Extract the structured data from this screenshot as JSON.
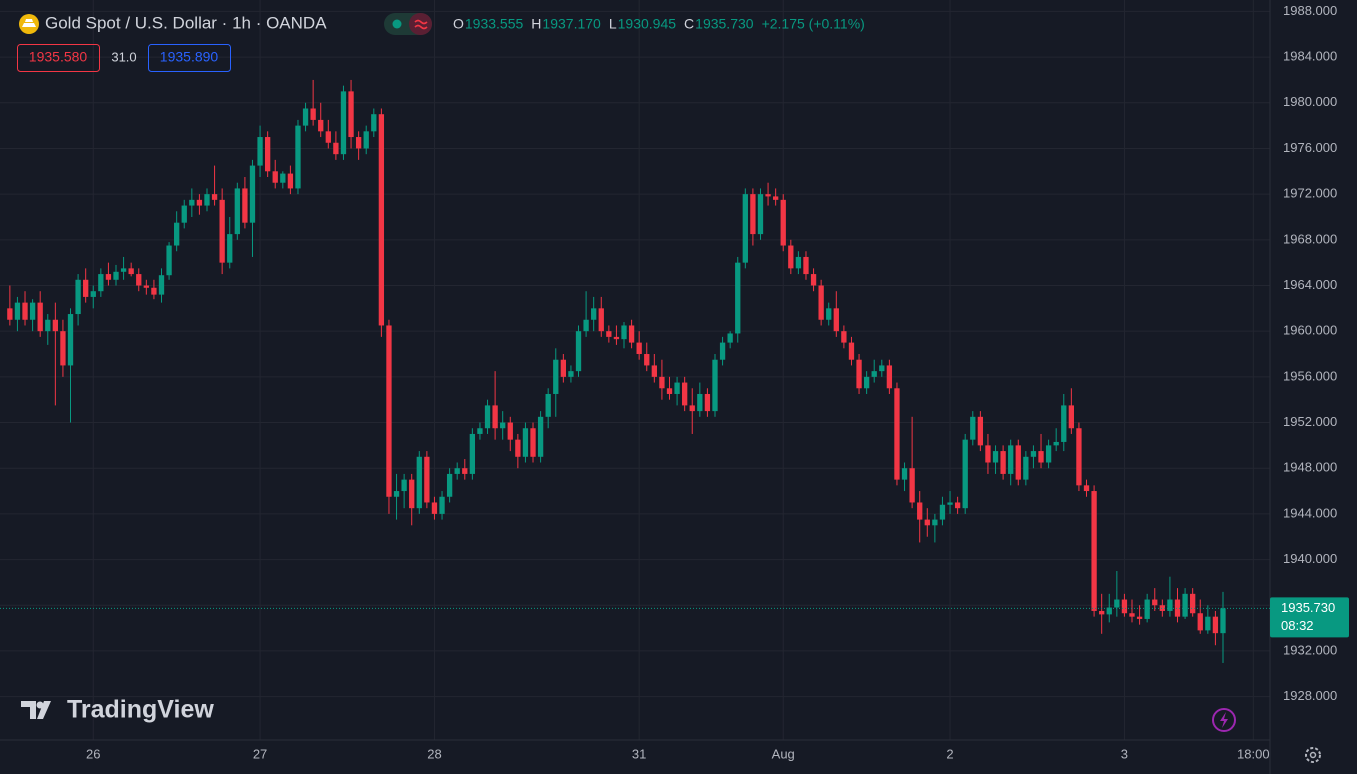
{
  "chart_data": {
    "type": "candlestick",
    "title": "Gold Spot / U.S. Dollar · 1h · OANDA",
    "legend": [
      {
        "label": "O",
        "value": "1933.555"
      },
      {
        "label": "H",
        "value": "1937.170"
      },
      {
        "label": "L",
        "value": "1930.945"
      },
      {
        "label": "C",
        "value": "1935.730"
      }
    ],
    "change": "+2.175 (+0.11%)",
    "bid": "1935.580",
    "spread": "31.0",
    "ask": "1935.890",
    "price_tag": {
      "value": 1935.73,
      "label": "1935.730",
      "countdown": "08:32"
    },
    "logo": "TradingView",
    "up_color": "#089981",
    "down_color": "#f23645",
    "open": [
      1962.0,
      1961.0,
      1962.5,
      1961.0,
      1962.5,
      1960.0,
      1961.0,
      1960.0,
      1957.0,
      1961.5,
      1964.5,
      1963.0,
      1963.5,
      1965.0,
      1964.5,
      1965.2,
      1965.5,
      1965.0,
      1964.0,
      1963.8,
      1963.2,
      1964.9,
      1967.5,
      1969.5,
      1971.0,
      1971.5,
      1971.0,
      1972.0,
      1971.5,
      1966.0,
      1968.5,
      1972.5,
      1969.5,
      1974.5,
      1977.0,
      1974.0,
      1973.0,
      1973.8,
      1972.5,
      1978.0,
      1979.5,
      1978.5,
      1977.5,
      1976.5,
      1975.5,
      1981.0,
      1977.0,
      1976.0,
      1977.5,
      1979.0,
      1960.5,
      1945.5,
      1946.0,
      1947.0,
      1944.5,
      1949.0,
      1945.0,
      1944.0,
      1945.5,
      1947.5,
      1948.0,
      1947.5,
      1951.0,
      1951.5,
      1953.5,
      1951.5,
      1952.0,
      1950.5,
      1949.0,
      1951.5,
      1949.0,
      1952.5,
      1954.5,
      1957.5,
      1956.0,
      1956.5,
      1960.0,
      1961.0,
      1962.0,
      1960.0,
      1959.5,
      1959.3,
      1960.5,
      1959.0,
      1958.0,
      1957.0,
      1956.0,
      1955.0,
      1954.5,
      1955.5,
      1953.5,
      1953.0,
      1954.5,
      1953.0,
      1957.5,
      1959.0,
      1959.8,
      1966.0,
      1972.0,
      1968.5,
      1972.0,
      1971.8,
      1971.5,
      1967.5,
      1965.5,
      1966.5,
      1965.0,
      1964.0,
      1961.0,
      1962.0,
      1960.0,
      1959.0,
      1957.5,
      1955.0,
      1956.0,
      1956.5,
      1957.0,
      1955.0,
      1947.0,
      1948.0,
      1945.0,
      1943.5,
      1943.0,
      1943.5,
      1944.8,
      1945.0,
      1944.5,
      1950.5,
      1952.5,
      1950.0,
      1948.5,
      1949.5,
      1947.5,
      1950.0,
      1947.0,
      1949.0,
      1949.5,
      1948.5,
      1950.0,
      1950.3,
      1953.5,
      1951.5,
      1946.5,
      1946.0,
      1935.5,
      1935.2,
      1935.8,
      1936.5,
      1935.3,
      1935.0,
      1934.8,
      1936.5,
      1936.0,
      1935.5,
      1936.5,
      1935.0,
      1937.0,
      1935.3,
      1933.8,
      1935.0,
      1933.555
    ],
    "high": [
      1964.0,
      1963.0,
      1963.5,
      1962.8,
      1963.5,
      1961.5,
      1962.5,
      1961.0,
      1962.0,
      1965.0,
      1965.5,
      1964.0,
      1965.5,
      1966.0,
      1965.8,
      1966.5,
      1966.0,
      1965.5,
      1964.5,
      1964.5,
      1965.5,
      1967.8,
      1970.5,
      1971.5,
      1972.5,
      1972.0,
      1972.5,
      1974.5,
      1972.5,
      1970.0,
      1973.0,
      1973.5,
      1975.0,
      1978.0,
      1977.5,
      1975.0,
      1974.0,
      1974.5,
      1978.5,
      1980.0,
      1982.0,
      1980.0,
      1978.5,
      1977.5,
      1981.5,
      1982.0,
      1977.5,
      1978.0,
      1979.5,
      1979.5,
      1961.0,
      1947.5,
      1947.5,
      1947.5,
      1949.5,
      1949.5,
      1945.5,
      1946.0,
      1948.0,
      1948.5,
      1948.8,
      1951.5,
      1952.0,
      1954.0,
      1956.5,
      1953.0,
      1952.5,
      1951.0,
      1952.0,
      1952.0,
      1953.0,
      1955.0,
      1958.5,
      1958.0,
      1957.0,
      1960.5,
      1963.5,
      1963.0,
      1963.0,
      1960.5,
      1960.5,
      1960.8,
      1961.0,
      1960.0,
      1959.0,
      1958.0,
      1957.5,
      1956.0,
      1956.0,
      1956.0,
      1955.0,
      1955.5,
      1955.0,
      1958.0,
      1959.5,
      1960.0,
      1966.5,
      1972.5,
      1972.5,
      1972.5,
      1973.0,
      1972.5,
      1972.0,
      1968.0,
      1967.0,
      1967.0,
      1965.5,
      1964.5,
      1962.5,
      1963.5,
      1960.5,
      1959.5,
      1958.0,
      1956.5,
      1957.5,
      1957.5,
      1957.5,
      1955.5,
      1948.5,
      1952.5,
      1946.0,
      1944.5,
      1944.0,
      1945.5,
      1946.0,
      1945.5,
      1951.0,
      1953.0,
      1953.0,
      1951.0,
      1950.0,
      1950.0,
      1950.5,
      1950.5,
      1949.5,
      1950.0,
      1951.0,
      1950.5,
      1951.5,
      1954.5,
      1955.0,
      1952.0,
      1947.0,
      1946.5,
      1937.0,
      1937.0,
      1939.0,
      1937.0,
      1936.5,
      1936.0,
      1937.0,
      1937.5,
      1936.5,
      1938.5,
      1937.5,
      1937.5,
      1937.5,
      1936.5,
      1936.0,
      1935.5,
      1937.17
    ],
    "low": [
      1960.5,
      1960.0,
      1960.5,
      1960.0,
      1959.5,
      1958.8,
      1953.5,
      1956.0,
      1952.0,
      1960.5,
      1962.5,
      1962.0,
      1963.0,
      1964.0,
      1964.0,
      1964.5,
      1964.8,
      1963.5,
      1963.2,
      1962.8,
      1962.5,
      1964.5,
      1967.0,
      1969.0,
      1970.0,
      1970.2,
      1970.5,
      1971.0,
      1965.0,
      1965.5,
      1968.0,
      1969.0,
      1966.5,
      1973.5,
      1973.5,
      1972.5,
      1972.5,
      1972.0,
      1972.0,
      1977.5,
      1978.0,
      1977.0,
      1976.0,
      1975.0,
      1975.0,
      1976.0,
      1975.0,
      1975.5,
      1977.0,
      1959.5,
      1944.0,
      1943.5,
      1944.5,
      1943.0,
      1944.0,
      1944.5,
      1943.5,
      1943.5,
      1945.0,
      1947.0,
      1947.0,
      1947.0,
      1950.5,
      1951.0,
      1950.5,
      1950.5,
      1949.5,
      1948.0,
      1948.5,
      1948.5,
      1948.5,
      1951.5,
      1952.5,
      1955.5,
      1955.5,
      1956.0,
      1959.5,
      1960.0,
      1959.5,
      1959.0,
      1958.8,
      1958.5,
      1958.5,
      1957.5,
      1956.5,
      1955.5,
      1954.0,
      1954.0,
      1953.5,
      1953.0,
      1951.0,
      1952.5,
      1952.5,
      1952.5,
      1957.0,
      1958.5,
      1959.0,
      1965.5,
      1967.5,
      1968.0,
      1971.0,
      1971.0,
      1967.0,
      1965.0,
      1965.0,
      1964.5,
      1963.5,
      1960.5,
      1960.5,
      1959.5,
      1958.5,
      1957.0,
      1954.5,
      1954.5,
      1955.5,
      1956.0,
      1954.5,
      1946.5,
      1946.0,
      1944.5,
      1941.5,
      1942.0,
      1941.5,
      1943.0,
      1944.0,
      1944.0,
      1944.0,
      1950.0,
      1949.5,
      1947.5,
      1947.5,
      1947.0,
      1946.5,
      1946.5,
      1946.5,
      1948.0,
      1948.0,
      1948.0,
      1949.5,
      1949.5,
      1951.0,
      1946.0,
      1945.5,
      1935.0,
      1933.5,
      1934.5,
      1935.0,
      1935.0,
      1934.5,
      1934.3,
      1934.5,
      1935.5,
      1935.0,
      1935.0,
      1934.5,
      1934.8,
      1935.0,
      1933.5,
      1933.5,
      1932.5,
      1930.945
    ],
    "close": [
      1961.0,
      1962.5,
      1961.0,
      1962.5,
      1960.0,
      1961.0,
      1960.0,
      1957.0,
      1961.5,
      1964.5,
      1963.0,
      1963.5,
      1965.0,
      1964.5,
      1965.2,
      1965.5,
      1965.0,
      1964.0,
      1963.8,
      1963.2,
      1964.9,
      1967.5,
      1969.5,
      1971.0,
      1971.5,
      1971.0,
      1972.0,
      1971.5,
      1966.0,
      1968.5,
      1972.5,
      1969.5,
      1974.5,
      1977.0,
      1974.0,
      1973.0,
      1973.8,
      1972.5,
      1978.0,
      1979.5,
      1978.5,
      1977.5,
      1976.5,
      1975.5,
      1981.0,
      1977.0,
      1976.0,
      1977.5,
      1979.0,
      1960.5,
      1945.5,
      1946.0,
      1947.0,
      1944.5,
      1949.0,
      1945.0,
      1944.0,
      1945.5,
      1947.5,
      1948.0,
      1947.5,
      1951.0,
      1951.5,
      1953.5,
      1951.5,
      1952.0,
      1950.5,
      1949.0,
      1951.5,
      1949.0,
      1952.5,
      1954.5,
      1957.5,
      1956.0,
      1956.5,
      1960.0,
      1961.0,
      1962.0,
      1960.0,
      1959.5,
      1959.3,
      1960.5,
      1959.0,
      1958.0,
      1957.0,
      1956.0,
      1955.0,
      1954.5,
      1955.5,
      1953.5,
      1953.0,
      1954.5,
      1953.0,
      1957.5,
      1959.0,
      1959.8,
      1966.0,
      1972.0,
      1968.5,
      1972.0,
      1971.8,
      1971.5,
      1967.5,
      1965.5,
      1966.5,
      1965.0,
      1964.0,
      1961.0,
      1962.0,
      1960.0,
      1959.0,
      1957.5,
      1955.0,
      1956.0,
      1956.5,
      1957.0,
      1955.0,
      1947.0,
      1948.0,
      1945.0,
      1943.5,
      1943.0,
      1943.5,
      1944.8,
      1945.0,
      1944.5,
      1950.5,
      1952.5,
      1950.0,
      1948.5,
      1949.5,
      1947.5,
      1950.0,
      1947.0,
      1949.0,
      1949.5,
      1948.5,
      1950.0,
      1950.3,
      1953.5,
      1951.5,
      1946.5,
      1946.0,
      1935.5,
      1935.2,
      1935.8,
      1936.5,
      1935.3,
      1935.0,
      1934.8,
      1936.5,
      1936.0,
      1935.5,
      1936.5,
      1935.0,
      1937.0,
      1935.3,
      1933.8,
      1935.0,
      1933.555,
      1935.73
    ],
    "xlim": [
      -1.3,
      166.2
    ],
    "xticks": [
      {
        "value": 11,
        "label": "26"
      },
      {
        "value": 33,
        "label": "27"
      },
      {
        "value": 56,
        "label": "28"
      },
      {
        "value": 83,
        "label": "31"
      },
      {
        "value": 102,
        "label": "Aug"
      },
      {
        "value": 124,
        "label": "2"
      },
      {
        "value": 147,
        "label": "3"
      },
      {
        "value": 164,
        "label": "18:00"
      }
    ],
    "ylim": [
      1924.2,
      1989.0
    ],
    "yticks": [
      {
        "value": 1928,
        "label": "1928.000"
      },
      {
        "value": 1932,
        "label": "1932.000"
      },
      {
        "value": 1936,
        "label": "1936.000"
      },
      {
        "value": 1940,
        "label": "1940.000"
      },
      {
        "value": 1944,
        "label": "1944.000"
      },
      {
        "value": 1948,
        "label": "1948.000"
      },
      {
        "value": 1952,
        "label": "1952.000"
      },
      {
        "value": 1956,
        "label": "1956.000"
      },
      {
        "value": 1960,
        "label": "1960.000"
      },
      {
        "value": 1964,
        "label": "1964.000"
      },
      {
        "value": 1968,
        "label": "1968.000"
      },
      {
        "value": 1972,
        "label": "1972.000"
      },
      {
        "value": 1976,
        "label": "1976.000"
      },
      {
        "value": 1980,
        "label": "1980.000"
      },
      {
        "value": 1984,
        "label": "1984.000"
      },
      {
        "value": 1988,
        "label": "1988.000"
      }
    ],
    "grid": true
  }
}
